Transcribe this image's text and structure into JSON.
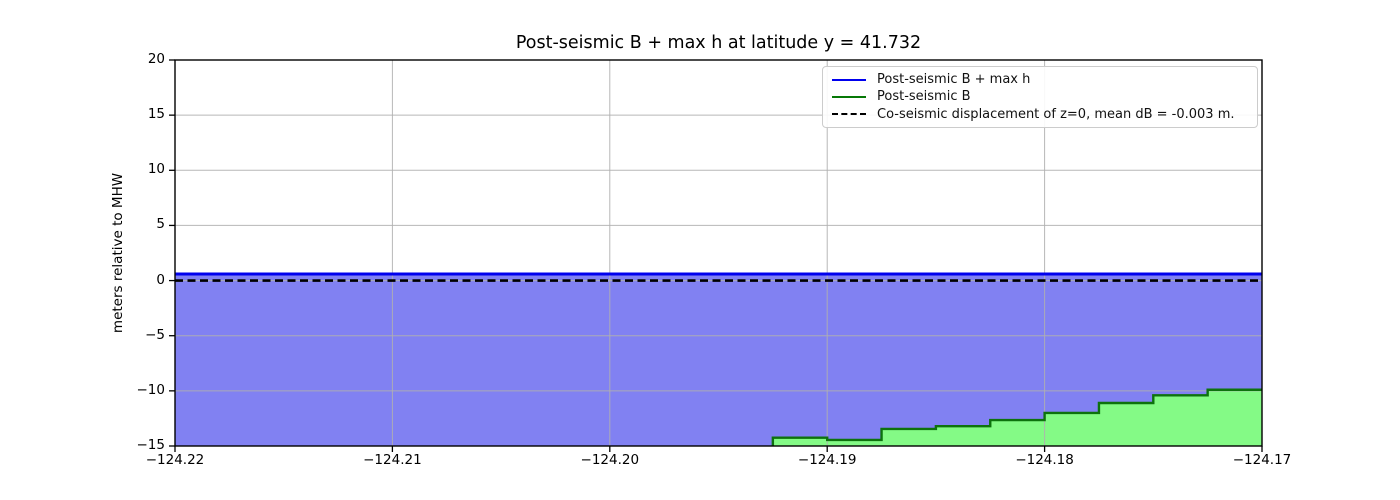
{
  "figure": {
    "background": "#ffffff",
    "frame_color": "#000000"
  },
  "chart_data": {
    "type": "area",
    "title": "Post-seismic B + max h at latitude y = 41.732",
    "xlabel": "",
    "ylabel": "meters relative to MHW",
    "xlim": [
      -124.22,
      -124.17
    ],
    "ylim": [
      -15,
      20
    ],
    "grid": true,
    "grid_color": "#b0b0b0",
    "xticks": {
      "values": [
        -124.22,
        -124.21,
        -124.2,
        -124.19,
        -124.18,
        -124.17
      ],
      "labels": [
        "−124.22",
        "−124.21",
        "−124.20",
        "−124.19",
        "−124.18",
        "−124.17"
      ]
    },
    "yticks": {
      "values": [
        20,
        15,
        10,
        5,
        0,
        -5,
        -10,
        -15
      ],
      "labels": [
        "20",
        "15",
        "10",
        "5",
        "0",
        "−5",
        "−10",
        "−15"
      ]
    },
    "legend": {
      "position": "upper right"
    },
    "series": [
      {
        "name": "Post-seismic B + max h",
        "type": "line",
        "style": "solid",
        "color": "#0000ee",
        "fill_color": "#8181f2",
        "fill_to_bottom": true,
        "x": [
          -124.22,
          -124.17
        ],
        "y": [
          0.6,
          0.6
        ]
      },
      {
        "name": "Post-seismic B",
        "type": "step-area",
        "style": "solid",
        "color": "#0d720d",
        "legend_color": "#067806",
        "fill_color": "#84fa86",
        "steps": [
          {
            "x": -124.1925,
            "y": -14.25
          },
          {
            "x": -124.19,
            "y": -14.45
          },
          {
            "x": -124.1875,
            "y": -13.45
          },
          {
            "x": -124.185,
            "y": -13.2
          },
          {
            "x": -124.1825,
            "y": -12.65
          },
          {
            "x": -124.18,
            "y": -12.0
          },
          {
            "x": -124.1775,
            "y": -11.1
          },
          {
            "x": -124.175,
            "y": -10.4
          },
          {
            "x": -124.1725,
            "y": -9.9
          }
        ],
        "x_end": -124.17
      },
      {
        "name": "Co-seismic displacement of z=0, mean dB = -0.003 m.",
        "type": "line",
        "style": "dashed",
        "color": "#000000",
        "x": [
          -124.22,
          -124.17
        ],
        "y": [
          0.0,
          0.0
        ]
      }
    ]
  }
}
